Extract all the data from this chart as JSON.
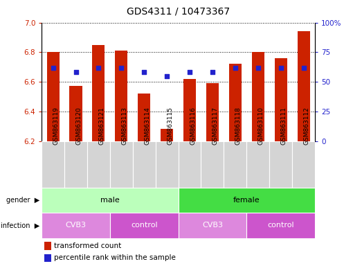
{
  "title": "GDS4311 / 10473367",
  "samples": [
    "GSM863119",
    "GSM863120",
    "GSM863121",
    "GSM863113",
    "GSM863114",
    "GSM863115",
    "GSM863116",
    "GSM863117",
    "GSM863118",
    "GSM863110",
    "GSM863111",
    "GSM863112"
  ],
  "transformed_counts": [
    6.8,
    6.57,
    6.85,
    6.81,
    6.52,
    6.28,
    6.62,
    6.59,
    6.72,
    6.8,
    6.76,
    6.94
  ],
  "percentile_ranks": [
    62,
    58,
    62,
    62,
    58,
    55,
    58,
    58,
    62,
    62,
    62,
    62
  ],
  "ylim": [
    6.2,
    7.0
  ],
  "yticks": [
    6.2,
    6.4,
    6.6,
    6.8,
    7.0
  ],
  "right_ylim": [
    0,
    100
  ],
  "right_yticks": [
    0,
    25,
    50,
    75,
    100
  ],
  "right_yticklabels": [
    "0",
    "25",
    "50",
    "75",
    "100%"
  ],
  "bar_color": "#cc2200",
  "dot_color": "#2222cc",
  "bar_bottom": 6.2,
  "gender_groups": [
    {
      "label": "male",
      "start": 0,
      "end": 6,
      "color": "#bbffbb"
    },
    {
      "label": "female",
      "start": 6,
      "end": 12,
      "color": "#44dd44"
    }
  ],
  "infection_groups": [
    {
      "label": "CVB3",
      "start": 0,
      "end": 3,
      "color": "#dd88dd"
    },
    {
      "label": "control",
      "start": 3,
      "end": 6,
      "color": "#cc55cc"
    },
    {
      "label": "CVB3",
      "start": 6,
      "end": 9,
      "color": "#dd88dd"
    },
    {
      "label": "control",
      "start": 9,
      "end": 12,
      "color": "#cc55cc"
    }
  ],
  "legend_items": [
    {
      "label": "transformed count",
      "color": "#cc2200"
    },
    {
      "label": "percentile rank within the sample",
      "color": "#2222cc"
    }
  ],
  "left_tick_color": "#cc2200",
  "right_tick_color": "#2222cc",
  "title_fontsize": 10,
  "tick_fontsize": 7.5,
  "sample_fontsize": 6.5,
  "row_fontsize": 8,
  "legend_fontsize": 7.5
}
